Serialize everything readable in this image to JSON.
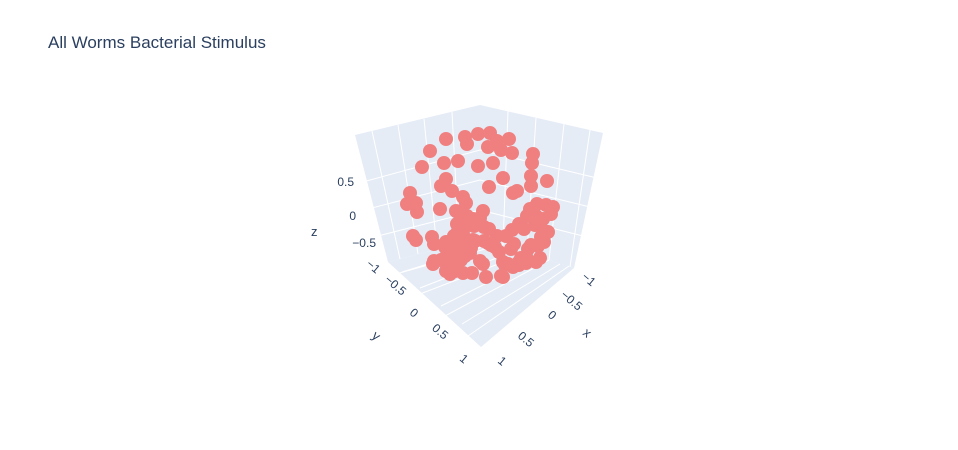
{
  "chart_data": {
    "type": "scatter",
    "title": "All Worms Bacterial Stimulus",
    "xlabel": "x",
    "ylabel": "y",
    "zlabel": "z",
    "x_ticks": [
      "−1",
      "−0.5",
      "0",
      "0.5",
      "1"
    ],
    "y_ticks": [
      "−1",
      "−0.5",
      "0",
      "0.5",
      "1"
    ],
    "z_ticks": [
      "−0.5",
      "0",
      "0.5"
    ],
    "marker_color": "#f08080",
    "background_color": "#e5ecf6",
    "grid_color": "#ffffff",
    "points_2d_projection": [
      [
        465,
        137
      ],
      [
        478,
        134
      ],
      [
        490,
        133
      ],
      [
        497,
        141
      ],
      [
        509,
        139
      ],
      [
        512,
        153
      ],
      [
        501,
        150
      ],
      [
        488,
        147
      ],
      [
        467,
        144
      ],
      [
        446,
        139
      ],
      [
        430,
        151
      ],
      [
        422,
        167
      ],
      [
        444,
        163
      ],
      [
        458,
        161
      ],
      [
        478,
        166
      ],
      [
        493,
        163
      ],
      [
        533,
        154
      ],
      [
        532,
        163
      ],
      [
        531,
        176
      ],
      [
        547,
        181
      ],
      [
        503,
        178
      ],
      [
        517,
        191
      ],
      [
        513,
        193
      ],
      [
        531,
        186
      ],
      [
        489,
        187
      ],
      [
        441,
        186
      ],
      [
        446,
        179
      ],
      [
        452,
        191
      ],
      [
        463,
        197
      ],
      [
        466,
        203
      ],
      [
        456,
        211
      ],
      [
        440,
        209
      ],
      [
        416,
        203
      ],
      [
        410,
        193
      ],
      [
        407,
        204
      ],
      [
        417,
        212
      ],
      [
        483,
        211
      ],
      [
        480,
        218
      ],
      [
        489,
        229
      ],
      [
        497,
        236
      ],
      [
        506,
        236
      ],
      [
        519,
        224
      ],
      [
        524,
        229
      ],
      [
        535,
        225
      ],
      [
        544,
        231
      ],
      [
        551,
        214
      ],
      [
        553,
        207
      ],
      [
        546,
        205
      ],
      [
        537,
        204
      ],
      [
        530,
        209
      ],
      [
        527,
        216
      ],
      [
        536,
        216
      ],
      [
        543,
        219
      ],
      [
        548,
        232
      ],
      [
        541,
        237
      ],
      [
        544,
        242
      ],
      [
        538,
        246
      ],
      [
        531,
        245
      ],
      [
        528,
        249
      ],
      [
        526,
        256
      ],
      [
        521,
        258
      ],
      [
        518,
        263
      ],
      [
        513,
        267
      ],
      [
        508,
        264
      ],
      [
        503,
        262
      ],
      [
        505,
        265
      ],
      [
        519,
        265
      ],
      [
        526,
        263
      ],
      [
        536,
        262
      ],
      [
        540,
        258
      ],
      [
        499,
        252
      ],
      [
        495,
        247
      ],
      [
        491,
        245
      ],
      [
        488,
        243
      ],
      [
        484,
        241
      ],
      [
        475,
        241
      ],
      [
        468,
        243
      ],
      [
        463,
        245
      ],
      [
        461,
        247
      ],
      [
        456,
        250
      ],
      [
        452,
        252
      ],
      [
        445,
        258
      ],
      [
        441,
        260
      ],
      [
        434,
        261
      ],
      [
        433,
        264
      ],
      [
        446,
        271
      ],
      [
        450,
        274
      ],
      [
        455,
        271
      ],
      [
        463,
        273
      ],
      [
        472,
        273
      ],
      [
        480,
        261
      ],
      [
        483,
        264
      ],
      [
        486,
        277
      ],
      [
        501,
        276
      ],
      [
        503,
        277
      ],
      [
        511,
        249
      ],
      [
        514,
        244
      ],
      [
        512,
        230
      ],
      [
        484,
        227
      ],
      [
        474,
        226
      ],
      [
        466,
        226
      ],
      [
        460,
        230
      ],
      [
        457,
        233
      ],
      [
        454,
        236
      ],
      [
        452,
        241
      ],
      [
        446,
        242
      ],
      [
        448,
        248
      ],
      [
        434,
        244
      ],
      [
        432,
        237
      ],
      [
        416,
        240
      ],
      [
        413,
        236
      ],
      [
        462,
        216
      ],
      [
        467,
        216
      ],
      [
        473,
        219
      ],
      [
        473,
        240
      ],
      [
        471,
        248
      ],
      [
        470,
        253
      ],
      [
        465,
        256
      ],
      [
        461,
        260
      ],
      [
        452,
        262
      ],
      [
        445,
        247
      ],
      [
        457,
        224
      ],
      [
        463,
        234
      ],
      [
        446,
        257
      ]
    ]
  }
}
